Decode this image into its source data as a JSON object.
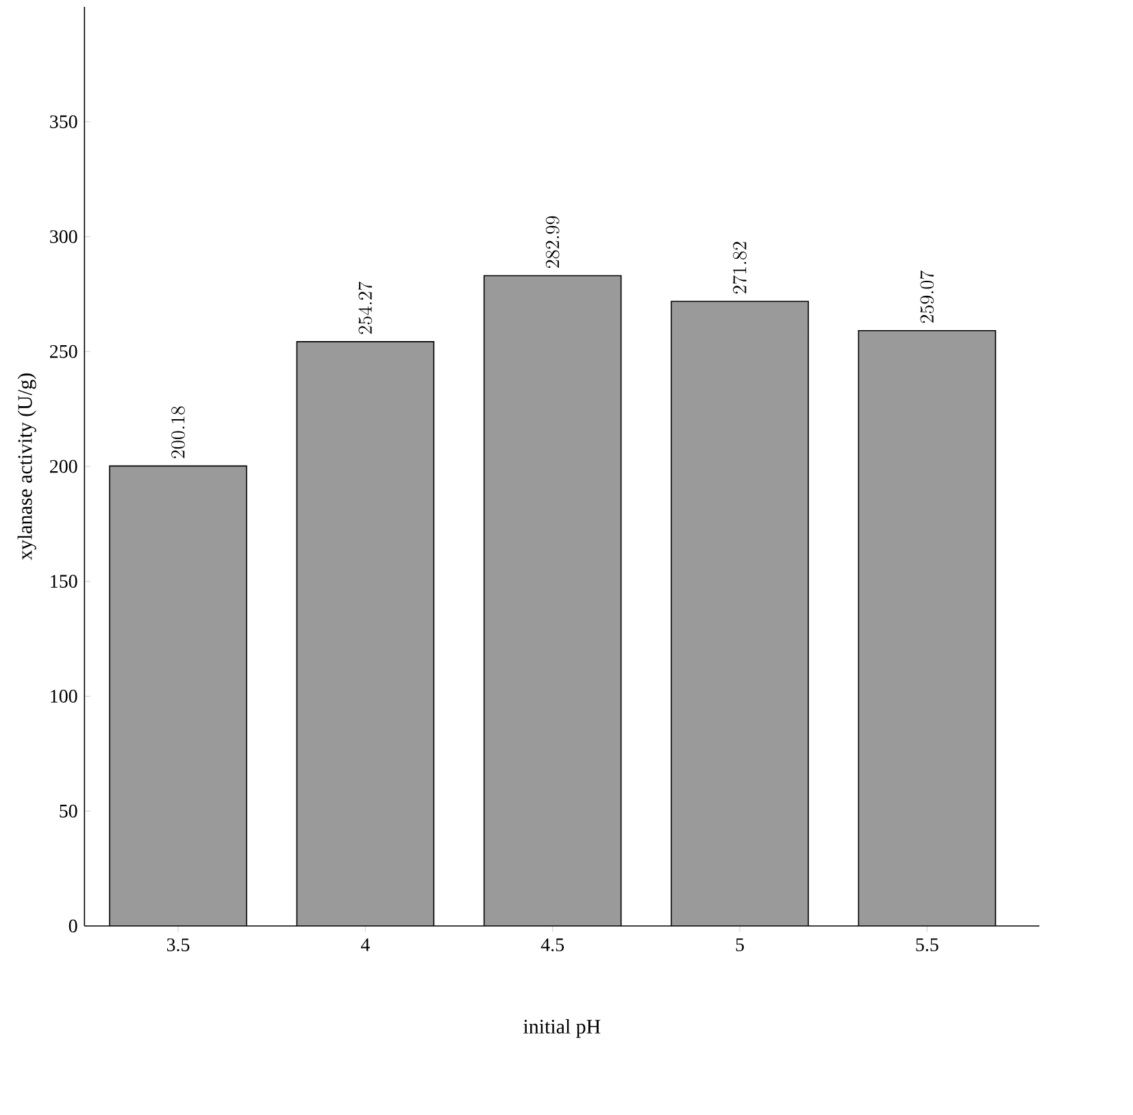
{
  "chart_data": {
    "type": "bar",
    "xlabel": "initial pH",
    "ylabel": "xylanase activity (U/g)",
    "categories": [
      "3.5",
      "4",
      "4.5",
      "5",
      "5.5"
    ],
    "values": [
      200.18,
      254.27,
      282.99,
      271.82,
      259.07
    ],
    "color": "#9a9a9a",
    "ylim": [
      0,
      400
    ],
    "yticks": [
      0,
      50,
      100,
      150,
      200,
      250,
      300,
      350
    ],
    "data_labels": true,
    "grid": false
  }
}
